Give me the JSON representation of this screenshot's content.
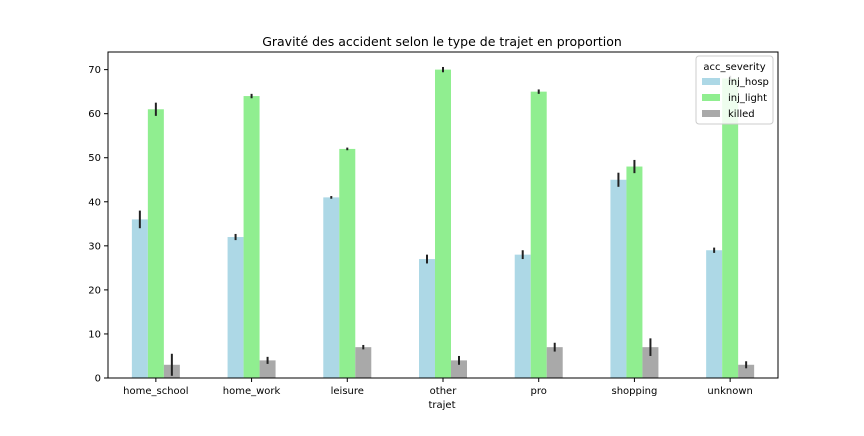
{
  "chart_data": {
    "type": "bar",
    "title": "Gravité des accident selon le type de trajet en proportion",
    "xlabel": "trajet",
    "ylabel": "",
    "ylim": [
      0,
      74
    ],
    "yticks": [
      0,
      10,
      20,
      30,
      40,
      50,
      60,
      70
    ],
    "grid": false,
    "legend": {
      "title": "acc_severity",
      "placement": "top-right"
    },
    "categories": [
      "home_school",
      "home_work",
      "leisure",
      "other",
      "pro",
      "shopping",
      "unknown"
    ],
    "series": [
      {
        "name": "inj_hosp",
        "color": "#add8e6",
        "values": [
          36,
          32,
          41,
          27,
          28,
          45,
          29
        ],
        "errors": [
          2,
          0.7,
          0.3,
          1,
          1,
          1.6,
          0.6
        ]
      },
      {
        "name": "inj_light",
        "color": "#90ee90",
        "values": [
          61,
          64,
          52,
          70,
          65,
          48,
          68
        ],
        "errors": [
          1.5,
          0.5,
          0.3,
          0.6,
          0.5,
          1.5,
          0.6
        ]
      },
      {
        "name": "killed",
        "color": "#a9a9a9",
        "values": [
          3,
          4,
          7,
          4,
          7,
          7,
          3
        ],
        "errors": [
          2.5,
          0.8,
          0.5,
          1,
          1,
          2,
          0.8
        ]
      }
    ]
  }
}
